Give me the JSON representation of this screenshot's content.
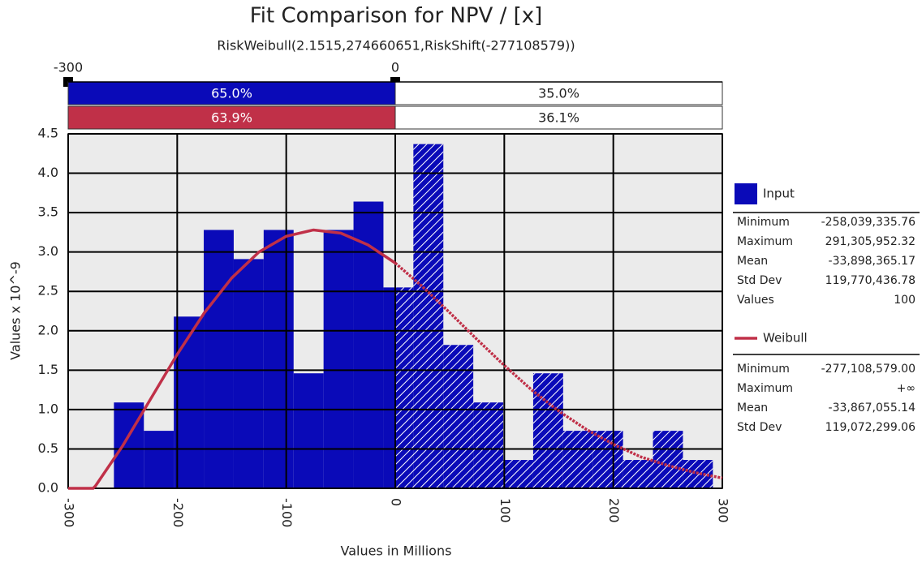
{
  "chart_data": {
    "type": "histogram",
    "title": "Fit Comparison for NPV / [x]",
    "subtitle": "RiskWeibull(2.1515,274660651,RiskShift(-277108579))",
    "xlabel": "Values in Millions",
    "ylabel": "Values x 10^-9",
    "name": "Input",
    "color": "#0a0ab8",
    "bins": [
      -258.04,
      -230.57,
      -203.11,
      -175.64,
      -148.17,
      -120.7,
      -93.24,
      -65.77,
      -38.3,
      -10.84,
      16.63,
      44.1,
      71.56,
      99.03,
      126.5,
      153.97,
      181.43,
      208.9,
      236.37,
      263.84,
      291.31
    ],
    "values": [
      1.09,
      0.73,
      2.18,
      3.28,
      2.91,
      3.28,
      1.46,
      3.28,
      3.64,
      2.55,
      4.37,
      1.82,
      1.09,
      0.36,
      1.46,
      0.73,
      0.73,
      0.36,
      0.73,
      0.36
    ],
    "xlim": [
      -300,
      300
    ],
    "xticks": [
      -300,
      -200,
      -100,
      0,
      100,
      200,
      300
    ],
    "ylim": [
      0,
      4.5
    ],
    "yticks": [
      {
        "value": 0,
        "label": "0.0"
      },
      0.5,
      {
        "value": 1,
        "label": "1.0"
      },
      1.5,
      {
        "value": 2,
        "label": "2.0"
      },
      2.5,
      {
        "value": 3,
        "label": "3.0"
      },
      3.5,
      {
        "value": 4,
        "label": "4.0"
      },
      4.5
    ],
    "grid": true,
    "stats": [
      [
        "Minimum",
        "-258,039,335.76"
      ],
      [
        "Maximum",
        "291,305,952.32"
      ],
      [
        "Mean",
        "-33,898,365.17"
      ],
      [
        "Std Dev",
        "119,770,436.78"
      ],
      [
        "Values",
        "100"
      ]
    ],
    "fit": {
      "name": "Weibull",
      "color": "#c03048",
      "x": [
        -300,
        -277.11,
        -275,
        -250,
        -225,
        -200,
        -175,
        -150,
        -125,
        -100,
        -75,
        -50,
        -25,
        0,
        25,
        50,
        75,
        100,
        125,
        150,
        175,
        200,
        225,
        250,
        275,
        300
      ],
      "values": [
        0,
        0,
        0.03,
        0.54,
        1.12,
        1.7,
        2.23,
        2.67,
        3.0,
        3.2,
        3.28,
        3.24,
        3.09,
        2.86,
        2.56,
        2.23,
        1.89,
        1.56,
        1.25,
        0.98,
        0.75,
        0.56,
        0.4,
        0.29,
        0.2,
        0.13
      ],
      "stats": [
        [
          "Minimum",
          "-277,108,579.00"
        ],
        [
          "Maximum",
          "+∞"
        ],
        [
          "Mean",
          "-33,867,055.14"
        ],
        [
          "Std Dev",
          "119,072,299.06"
        ]
      ]
    },
    "delimiters": {
      "x": [
        -300,
        0
      ],
      "input": {
        "values": [
          65.0,
          35.0
        ],
        "value_labels": [
          "65.0%",
          "35.0%"
        ]
      },
      "fit": {
        "values": [
          63.9,
          36.1
        ],
        "value_labels": [
          "63.9%",
          "36.1%"
        ]
      }
    }
  }
}
